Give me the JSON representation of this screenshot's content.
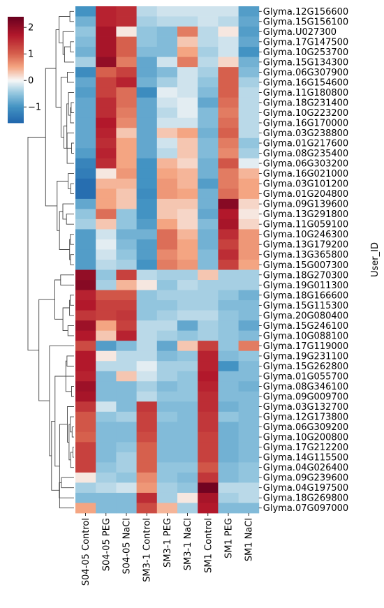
{
  "chart_data": {
    "type": "heatmap",
    "title": "",
    "xlabel": "",
    "ylabel": "User_ID",
    "columns": [
      "S04-05 Control",
      "S04-05 PEG",
      "S04-05 NaCl",
      "SM3-1 Control",
      "SM3-1 PEG",
      "SM3-1 NaCl",
      "SM1 Control",
      "SM1 PEG",
      "SM1 NaCl"
    ],
    "rows": [
      "Glyma.12G156600",
      "Glyma.15G156100",
      "Glyma.U027300",
      "Glyma.17G147500",
      "Glyma.10G253700",
      "Glyma.15G134300",
      "Glyma.06G307900",
      "Glyma.16G154600",
      "Glyma.11G180800",
      "Glyma.18G231400",
      "Glyma.10G223200",
      "Glyma.16G170000",
      "Glyma.03G238800",
      "Glyma.01G217600",
      "Glyma.08G235400",
      "Glyma.06G303200",
      "Glyma.16G021000",
      "Glyma.03G101200",
      "Glyma.01G204800",
      "Glyma.09G139600",
      "Glyma.13G291800",
      "Glyma.11G059100",
      "Glyma.10G246300",
      "Glyma.13G179200",
      "Glyma.13G365800",
      "Glyma.15G007300",
      "Glyma.18G270300",
      "Glyma.19G011300",
      "Glyma.18G166600",
      "Glyma.15G115300",
      "Glyma.20G080400",
      "Glyma.15G246100",
      "Glyma.10G088100",
      "Glyma.17G119000",
      "Glyma.19G231100",
      "Glyma.15G262800",
      "Glyma.01G055700",
      "Glyma.08G346100",
      "Glyma.09G009700",
      "Glyma.03G132700",
      "Glyma.12G173800",
      "Glyma.06G309200",
      "Glyma.10G200800",
      "Glyma.17G212200",
      "Glyma.14G115500",
      "Glyma.04G026400",
      "Glyma.09G239600",
      "Glyma.04G197500",
      "Glyma.18G269800",
      "Glyma.07G097000"
    ],
    "values": [
      [
        -1.0,
        1.6,
        1.5,
        -0.3,
        -0.2,
        -0.2,
        -0.2,
        -0.2,
        -0.9
      ],
      [
        -0.7,
        1.6,
        1.5,
        -0.4,
        -0.3,
        -0.3,
        -0.2,
        -0.3,
        -0.8
      ],
      [
        -0.5,
        1.8,
        0.1,
        -0.5,
        -0.6,
        0.8,
        -0.3,
        0.1,
        -0.9
      ],
      [
        -0.6,
        1.8,
        1.0,
        -0.5,
        -0.6,
        0.3,
        -0.3,
        -0.2,
        -0.8
      ],
      [
        -0.7,
        1.8,
        1.0,
        -0.6,
        -0.6,
        0.5,
        -0.4,
        -0.2,
        -1.0
      ],
      [
        -0.4,
        2.0,
        0.8,
        -0.8,
        -0.2,
        0.8,
        -0.3,
        0.2,
        -0.7
      ],
      [
        -1.1,
        1.0,
        1.3,
        -0.8,
        -0.6,
        -0.2,
        -0.4,
        1.0,
        -0.6
      ],
      [
        -0.8,
        1.3,
        1.6,
        -0.7,
        -0.4,
        -0.2,
        -0.5,
        1.0,
        -0.4
      ],
      [
        -0.9,
        1.3,
        0.9,
        -1.1,
        -0.1,
        -0.2,
        -0.6,
        1.0,
        -0.3
      ],
      [
        -0.8,
        1.5,
        0.9,
        -0.8,
        -0.2,
        -0.1,
        -0.8,
        0.9,
        -0.3
      ],
      [
        -0.8,
        1.5,
        0.8,
        -0.8,
        -0.3,
        -0.1,
        -0.6,
        0.8,
        -0.3
      ],
      [
        -0.8,
        1.7,
        0.7,
        -0.8,
        -0.2,
        -0.2,
        -0.6,
        0.9,
        -0.3
      ],
      [
        -0.8,
        1.6,
        0.3,
        -0.8,
        0.3,
        0.5,
        -0.7,
        1.0,
        -0.3
      ],
      [
        -0.8,
        1.5,
        0.5,
        -0.8,
        -0.2,
        0.3,
        -0.6,
        0.8,
        -0.5
      ],
      [
        -0.9,
        1.6,
        0.5,
        -0.8,
        -0.3,
        0.3,
        -0.6,
        0.7,
        -0.4
      ],
      [
        -1.2,
        1.5,
        0.5,
        -1.0,
        0.4,
        0.2,
        -0.7,
        1.1,
        -0.1
      ],
      [
        -1.3,
        0.1,
        0.6,
        -1.0,
        0.5,
        0.4,
        -0.7,
        0.8,
        0.4
      ],
      [
        -1.5,
        0.4,
        0.4,
        -1.0,
        0.6,
        0.4,
        -0.9,
        0.8,
        0.5
      ],
      [
        -1.5,
        0.5,
        0.3,
        -1.1,
        0.6,
        0.5,
        -0.7,
        0.9,
        0.5
      ],
      [
        -0.8,
        0.5,
        0.3,
        -1.0,
        0.3,
        0.3,
        -0.7,
        2.1,
        0.2
      ],
      [
        -0.5,
        0.9,
        -0.5,
        -1.0,
        0.3,
        0.2,
        -0.8,
        1.7,
        0.1
      ],
      [
        -0.4,
        0.3,
        -0.5,
        -0.9,
        0.5,
        0.2,
        -0.6,
        1.8,
        0.2
      ],
      [
        -0.9,
        -0.2,
        -0.7,
        -0.7,
        0.9,
        0.4,
        -0.7,
        1.5,
        0.6
      ],
      [
        -0.9,
        -0.1,
        -0.6,
        -0.9,
        0.9,
        0.5,
        -0.7,
        1.3,
        0.6
      ],
      [
        -0.9,
        -0.2,
        -0.5,
        -0.9,
        0.7,
        0.5,
        -0.6,
        1.5,
        0.6
      ],
      [
        -0.9,
        -0.3,
        -0.4,
        -1.0,
        0.8,
        0.6,
        -0.6,
        1.3,
        0.5
      ],
      [
        2.0,
        -0.5,
        1.3,
        -0.3,
        -0.4,
        -0.4,
        0.3,
        -0.4,
        -0.4
      ],
      [
        2.1,
        -0.4,
        0.4,
        0.1,
        -0.5,
        -0.3,
        -0.4,
        -0.4,
        -0.4
      ],
      [
        1.6,
        1.1,
        1.1,
        -0.5,
        -0.4,
        -0.4,
        -0.4,
        -0.5,
        -0.7
      ],
      [
        1.7,
        1.3,
        1.3,
        -0.5,
        -0.5,
        -0.4,
        -0.4,
        -0.6,
        -0.6
      ],
      [
        1.4,
        1.3,
        1.4,
        -0.5,
        -0.4,
        -0.3,
        -0.3,
        -0.5,
        -0.6
      ],
      [
        1.9,
        0.5,
        1.3,
        -0.3,
        -0.3,
        -0.8,
        -0.4,
        -0.5,
        -0.8
      ],
      [
        1.7,
        0.3,
        1.6,
        -0.3,
        -0.4,
        -0.5,
        -0.4,
        -0.5,
        -0.6
      ],
      [
        1.2,
        -0.9,
        -0.6,
        -0.3,
        -0.8,
        0.3,
        1.3,
        -0.5,
        0.8
      ],
      [
        1.7,
        0.1,
        -0.3,
        -0.3,
        -0.6,
        -0.5,
        1.6,
        -0.6,
        -0.5
      ],
      [
        1.7,
        -0.3,
        -0.3,
        -0.1,
        -0.4,
        -0.4,
        1.6,
        -1.0,
        -0.6
      ],
      [
        1.6,
        -0.6,
        0.3,
        -0.2,
        -0.4,
        -0.5,
        1.7,
        -0.6,
        -0.6
      ],
      [
        1.9,
        -0.6,
        -0.6,
        -0.4,
        -0.6,
        -0.5,
        1.6,
        -0.6,
        -0.7
      ],
      [
        1.8,
        -0.6,
        -0.6,
        -0.3,
        -0.5,
        -0.5,
        1.5,
        -0.6,
        -0.6
      ],
      [
        1.4,
        -0.2,
        -0.6,
        1.4,
        -0.6,
        -0.6,
        1.5,
        -0.7,
        -0.6
      ],
      [
        1.1,
        -0.5,
        -0.4,
        1.3,
        -0.5,
        -0.6,
        1.4,
        -0.5,
        -0.6
      ],
      [
        1.1,
        -0.6,
        -0.6,
        1.3,
        -0.6,
        -0.6,
        1.4,
        -0.7,
        -0.6
      ],
      [
        1.0,
        -0.6,
        -0.6,
        1.2,
        -0.6,
        -0.6,
        1.3,
        -0.7,
        -0.6
      ],
      [
        1.3,
        -0.6,
        -0.5,
        1.0,
        -0.6,
        -0.6,
        1.3,
        -0.7,
        -0.6
      ],
      [
        1.3,
        -0.6,
        -0.4,
        1.0,
        -0.6,
        -0.6,
        1.3,
        -0.7,
        -0.6
      ],
      [
        1.3,
        -0.5,
        -0.4,
        1.0,
        -0.5,
        -0.5,
        1.1,
        -0.6,
        -0.5
      ],
      [
        0.1,
        -0.4,
        -0.5,
        0.7,
        -0.5,
        -0.6,
        1.4,
        -0.6,
        -0.5
      ],
      [
        -0.4,
        -0.3,
        -0.2,
        0.6,
        -0.4,
        -0.5,
        2.3,
        -0.3,
        -0.3
      ],
      [
        -0.6,
        -0.6,
        -0.6,
        1.5,
        -0.4,
        0.1,
        1.8,
        -0.4,
        -0.3
      ],
      [
        0.5,
        -0.6,
        -0.6,
        1.2,
        0.4,
        -0.4,
        1.7,
        -0.6,
        -0.6
      ]
    ],
    "colorbar": {
      "ticks": [
        2,
        1,
        0,
        -1
      ],
      "tick_labels": [
        "2",
        "1",
        "0",
        "−1"
      ],
      "vmin": -1.6,
      "vmax": 2.4
    },
    "colormap": {
      "low": "#2166ac",
      "mid": "#f7f7f7",
      "high": "#67001f"
    },
    "row_dendrogram": true,
    "grid": false,
    "legend": "top-left colorbar"
  }
}
